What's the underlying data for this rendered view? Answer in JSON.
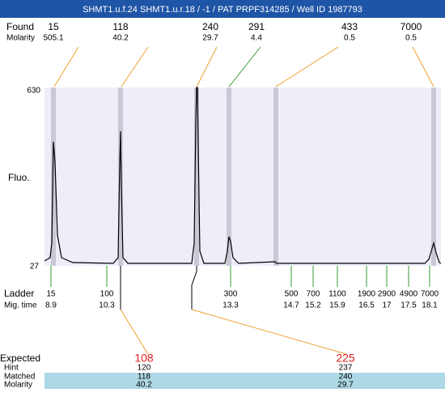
{
  "header": {
    "title": "SHMT1.u.f.24  SHMT1.u.r.18 / -1 / PAT PRPF314285 / Well ID 1987793"
  },
  "found": {
    "label": "Found",
    "molarity_label": "Molarity",
    "peaks": [
      {
        "size": "15",
        "molarity": "505.1"
      },
      {
        "size": "118",
        "molarity": "40.2"
      },
      {
        "size": "240",
        "molarity": "29.7"
      },
      {
        "size": "291",
        "molarity": "4.4"
      },
      {
        "size": "433",
        "molarity": "0.5"
      },
      {
        "size": "7000",
        "molarity": "0.5"
      }
    ]
  },
  "axis": {
    "top": "630",
    "bottom": "27",
    "label": "Fluo."
  },
  "ladder": {
    "label": "Ladder",
    "time_label": "Mig. time",
    "items": [
      {
        "size": "15",
        "time": "8.9"
      },
      {
        "size": "100",
        "time": "10.3"
      },
      {
        "size": "300",
        "time": "13.3"
      },
      {
        "size": "500",
        "time": "14.7"
      },
      {
        "size": "700",
        "time": "15.2"
      },
      {
        "size": "1100",
        "time": "15.9"
      },
      {
        "size": "1900",
        "time": "16.5"
      },
      {
        "size": "2900",
        "time": "17"
      },
      {
        "size": "4900",
        "time": "17.5"
      },
      {
        "size": "7000",
        "time": "18.1"
      }
    ]
  },
  "expected": {
    "labels": [
      "Expected",
      "Hint",
      "Matched",
      "Molarity"
    ],
    "columns": [
      {
        "expected": "108",
        "hint": "120",
        "matched": "118",
        "molarity": "40.2"
      },
      {
        "expected": "225",
        "hint": "237",
        "matched": "240",
        "molarity": "29.7"
      }
    ]
  }
}
